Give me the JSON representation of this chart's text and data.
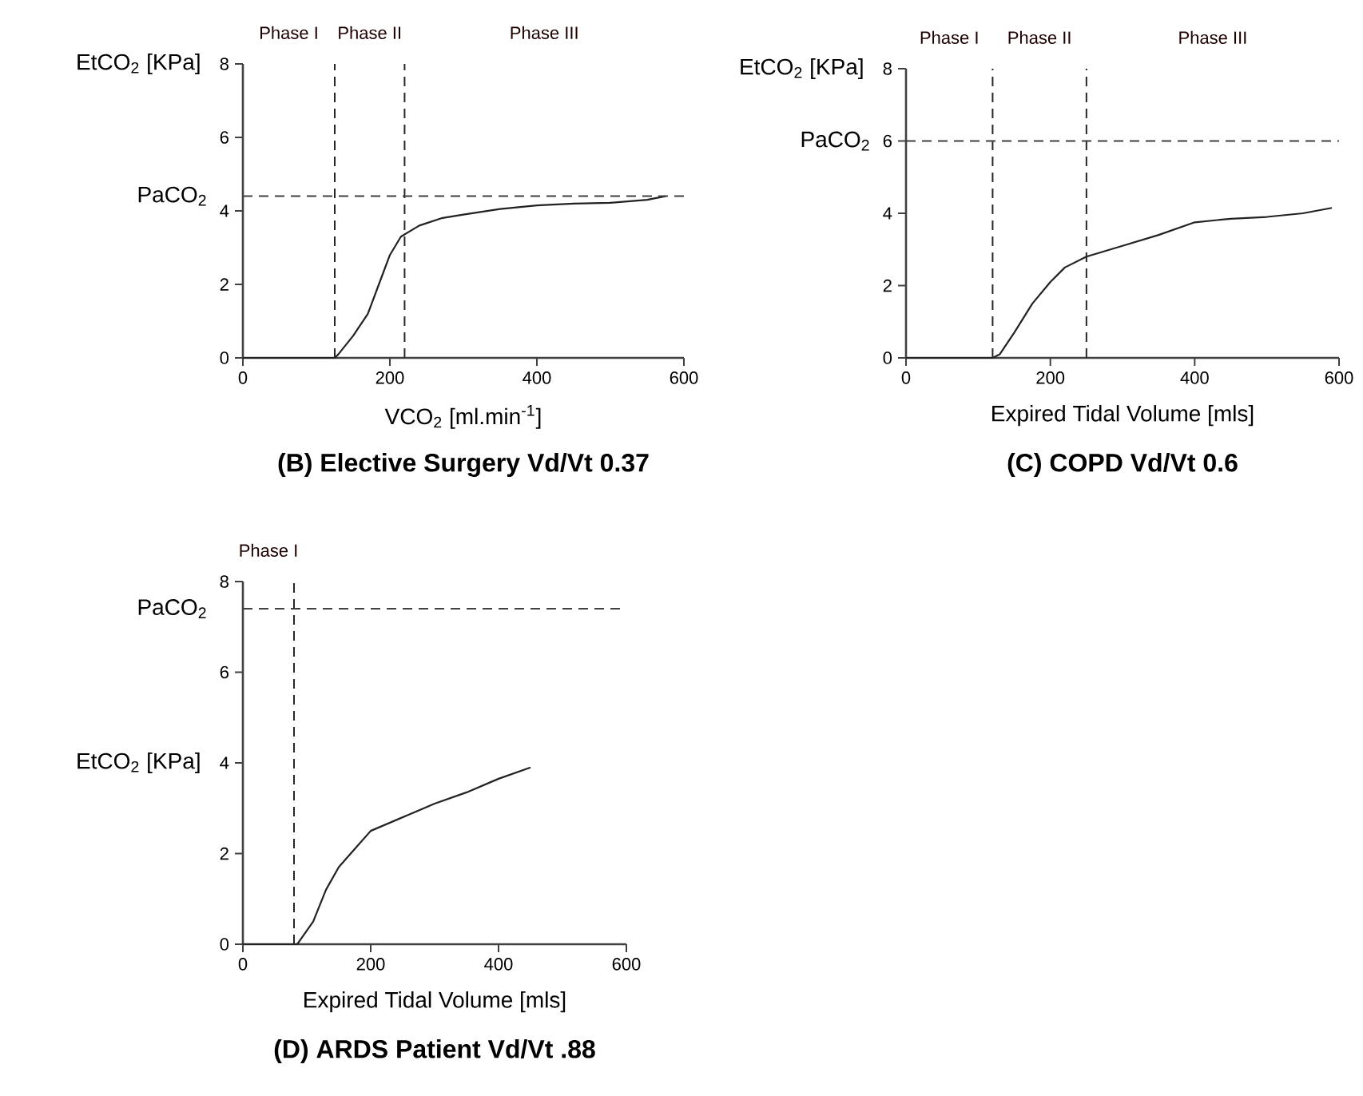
{
  "chart_data": [
    {
      "type": "line",
      "title": "(B)  Elective Surgery Vd/Vt 0.37",
      "xlabel": "VCO$_{2}$ [ml.min$^{-1}$]",
      "ylabel": "EtCO$_{2}$ [KPa]",
      "color": "#222222",
      "xlim": [
        0,
        600
      ],
      "ylim": [
        0,
        8
      ],
      "xticks": [
        0,
        200,
        400,
        600
      ],
      "yticks": [
        0,
        2,
        4,
        6,
        8
      ],
      "x": [
        0,
        125,
        130,
        150,
        170,
        185,
        200,
        215,
        240,
        270,
        300,
        350,
        400,
        450,
        500,
        550,
        575
      ],
      "values": [
        0,
        0,
        0.1,
        0.6,
        1.2,
        2.0,
        2.8,
        3.3,
        3.6,
        3.8,
        3.9,
        4.05,
        4.15,
        4.2,
        4.22,
        4.3,
        4.4
      ],
      "ref_lines": [
        {
          "axis": "x",
          "value": 125,
          "line_style": "dashed"
        },
        {
          "axis": "x",
          "value": 220,
          "line_style": "dashed"
        },
        {
          "axis": "y",
          "value": 4.4,
          "label": "PaCO$_{2}$",
          "line_style": "dashed"
        }
      ],
      "annotations": [
        "Phase I",
        "Phase II",
        "Phase III"
      ]
    },
    {
      "type": "line",
      "title": "(C)  COPD Vd/Vt 0.6",
      "xlabel": "Expired Tidal Volume [mls]",
      "ylabel": "EtCO$_{2}$ [KPa]",
      "color": "#222222",
      "xlim": [
        0,
        600
      ],
      "ylim": [
        0,
        8
      ],
      "xticks": [
        0,
        200,
        400,
        600
      ],
      "yticks": [
        0,
        2,
        4,
        6,
        8
      ],
      "x": [
        0,
        120,
        130,
        150,
        175,
        200,
        220,
        250,
        300,
        350,
        400,
        450,
        500,
        550,
        590
      ],
      "values": [
        0,
        0,
        0.1,
        0.7,
        1.5,
        2.1,
        2.5,
        2.8,
        3.1,
        3.4,
        3.75,
        3.85,
        3.9,
        4.0,
        4.15
      ],
      "ref_lines": [
        {
          "axis": "x",
          "value": 120,
          "line_style": "dashed"
        },
        {
          "axis": "x",
          "value": 250,
          "line_style": "dashed"
        },
        {
          "axis": "y",
          "value": 6,
          "label": "PaCO$_{2}$",
          "line_style": "dashed"
        }
      ],
      "annotations": [
        "Phase I",
        "Phase II",
        "Phase III"
      ]
    },
    {
      "type": "line",
      "title": "(D)  ARDS Patient Vd/Vt .88",
      "xlabel": "Expired Tidal Volume [mls]",
      "ylabel": "EtCO$_{2}$ [KPa]",
      "color": "#222222",
      "xlim": [
        0,
        600
      ],
      "ylim": [
        0,
        8
      ],
      "xticks": [
        0,
        200,
        400,
        600
      ],
      "yticks": [
        0,
        2,
        4,
        6,
        8
      ],
      "x": [
        0,
        85,
        90,
        110,
        130,
        150,
        175,
        200,
        250,
        300,
        350,
        400,
        450
      ],
      "values": [
        0,
        0,
        0.1,
        0.5,
        1.2,
        1.7,
        2.1,
        2.5,
        2.8,
        3.1,
        3.35,
        3.65,
        3.9
      ],
      "ref_lines": [
        {
          "axis": "x",
          "value": 80,
          "line_style": "dashed"
        },
        {
          "axis": "y",
          "value": 7.4,
          "label": "PaCO$_{2}$",
          "line_style": "dashed"
        }
      ],
      "annotations": [
        "Phase I"
      ]
    }
  ]
}
